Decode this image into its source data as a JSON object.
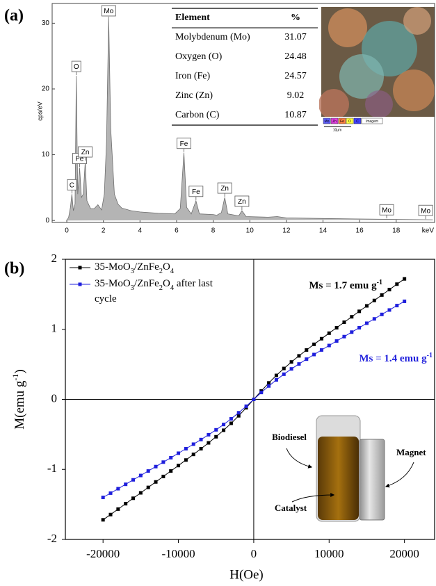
{
  "chart_data": [
    {
      "type": "area",
      "panel_label": "(a)",
      "y_label": "cps/eV",
      "x_label": "keV",
      "x": [
        0,
        0.1,
        0.2,
        0.28,
        0.36,
        0.45,
        0.52,
        0.6,
        0.7,
        0.8,
        0.9,
        1.01,
        1.1,
        1.3,
        1.5,
        1.7,
        1.9,
        2.05,
        2.17,
        2.29,
        2.4,
        2.6,
        2.8,
        3,
        3.5,
        4,
        5,
        5.9,
        6.2,
        6.4,
        6.55,
        6.8,
        7.06,
        7.25,
        8,
        8.2,
        8.45,
        8.63,
        8.8,
        9.4,
        9.57,
        9.8,
        11,
        11.5,
        12,
        14,
        17,
        20
      ],
      "values": [
        0,
        0.5,
        2,
        4,
        1.5,
        2.5,
        22,
        4,
        8,
        3.5,
        4,
        9,
        3,
        1.8,
        1.8,
        2.4,
        1.6,
        4,
        12,
        31,
        14,
        4,
        2.5,
        1.9,
        1.5,
        1.3,
        1.1,
        1,
        1.8,
        10.3,
        2,
        1,
        3,
        1,
        0.9,
        0.8,
        1.2,
        3.5,
        1,
        0.7,
        1.5,
        0.6,
        0.5,
        0.6,
        0.4,
        0.3,
        0.2,
        0.1
      ],
      "color": "#b4b4b4",
      "xlim": [
        -0.8,
        20.1
      ],
      "xticks": [
        0,
        2,
        4,
        6,
        8,
        10,
        12,
        14,
        16,
        18
      ],
      "ylim": [
        -0.3,
        33
      ],
      "yticks": [
        0,
        10,
        20,
        30
      ],
      "peak_labels": [
        {
          "text": "C",
          "x": 0.28
        },
        {
          "text": "O",
          "x": 0.52
        },
        {
          "text": "Fe",
          "x": 0.7
        },
        {
          "text": "Zn",
          "x": 1.01
        },
        {
          "text": "Mo",
          "x": 2.29
        },
        {
          "text": "Fe",
          "x": 6.4
        },
        {
          "text": "Fe",
          "x": 7.06
        },
        {
          "text": "Zn",
          "x": 8.63
        },
        {
          "text": "Zn",
          "x": 9.57
        },
        {
          "text": "Mo",
          "x": 17.48
        },
        {
          "text": "Mo",
          "x": 19.61
        }
      ],
      "table": {
        "header": [
          "Element",
          "%"
        ],
        "rows": [
          [
            "Molybdenum (Mo)",
            31.07
          ],
          [
            "Oxygen (O)",
            24.48
          ],
          [
            "Iron (Fe)",
            24.57
          ],
          [
            "Zinc (Zn)",
            9.02
          ],
          [
            "Carbon (C)",
            10.87
          ]
        ]
      },
      "micrograph": {
        "legend": [
          "Mo",
          "Zn",
          "Fe",
          "O",
          "C",
          "Imagem"
        ],
        "scale": "10µm"
      }
    },
    {
      "type": "line",
      "panel_label": "(b)",
      "y_label": "M(emu g",
      "y_label_sup": "-1",
      "y_label_end": ")",
      "x_label": "H(Oe)",
      "x": [
        -20000,
        -19000,
        -18000,
        -17000,
        -16000,
        -15000,
        -14000,
        -13000,
        -12000,
        -11000,
        -10000,
        -9000,
        -8000,
        -7000,
        -6000,
        -5000,
        -4000,
        -3000,
        -2000,
        -1000,
        0,
        1000,
        2000,
        3000,
        4000,
        5000,
        6000,
        7000,
        8000,
        9000,
        10000,
        11000,
        12000,
        13000,
        14000,
        15000,
        16000,
        17000,
        18000,
        19000,
        20000
      ],
      "series": [
        {
          "name": "35-MoO3/ZnFe2O4",
          "color": "#000000",
          "values": [
            -1.72,
            -1.645,
            -1.567,
            -1.49,
            -1.412,
            -1.335,
            -1.257,
            -1.179,
            -1.101,
            -1.023,
            -0.945,
            -0.866,
            -0.786,
            -0.705,
            -0.621,
            -0.534,
            -0.441,
            -0.342,
            -0.235,
            -0.12,
            0,
            0.12,
            0.235,
            0.342,
            0.441,
            0.534,
            0.621,
            0.705,
            0.786,
            0.866,
            0.945,
            1.023,
            1.101,
            1.179,
            1.257,
            1.335,
            1.412,
            1.49,
            1.567,
            1.645,
            1.72
          ]
        },
        {
          "name": "35-MoO3/ZnFe2O4 after last cycle",
          "color": "#1f1fdc",
          "values": [
            -1.4,
            -1.339,
            -1.276,
            -1.213,
            -1.149,
            -1.087,
            -1.023,
            -0.96,
            -0.896,
            -0.833,
            -0.769,
            -0.705,
            -0.64,
            -0.574,
            -0.505,
            -0.435,
            -0.359,
            -0.278,
            -0.191,
            -0.098,
            0,
            0.098,
            0.191,
            0.278,
            0.359,
            0.435,
            0.505,
            0.574,
            0.64,
            0.705,
            0.769,
            0.833,
            0.896,
            0.96,
            1.023,
            1.087,
            1.149,
            1.213,
            1.276,
            1.339,
            1.4
          ]
        }
      ],
      "xlim": [
        -25000,
        24000
      ],
      "xticks": [
        -20000,
        -10000,
        0,
        10000,
        20000
      ],
      "ylim": [
        -2,
        2
      ],
      "yticks": [
        -2,
        -1,
        0,
        1,
        2
      ],
      "legend": "upper left",
      "annotations": [
        {
          "text": "Ms = 1.7 emu g",
          "sup": "-1"
        },
        {
          "text": "Ms = 1.4 emu g",
          "sup": "-1"
        }
      ],
      "photo_labels": [
        "Biodiesel",
        "Magnet",
        "Catalyst"
      ]
    }
  ]
}
